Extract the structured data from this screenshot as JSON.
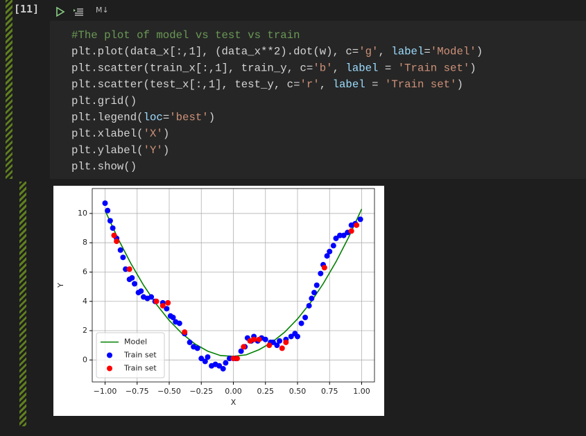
{
  "header": {
    "cell_label": "[11]",
    "cell_type": "M↓"
  },
  "code": {
    "lines": [
      [
        {
          "text": "#The plot of model vs test vs train",
          "color": "#6a9955"
        }
      ],
      [
        {
          "text": "plt.plot(data_x[:,1], (data_x**2).dot(w), c=",
          "color": "#d4d4d4"
        },
        {
          "text": "'g'",
          "color": "#ce9178"
        },
        {
          "text": ", ",
          "color": "#d4d4d4"
        },
        {
          "text": "label",
          "color": "#9cdcfe"
        },
        {
          "text": "=",
          "color": "#d4d4d4"
        },
        {
          "text": "'Model'",
          "color": "#ce9178"
        },
        {
          "text": ")",
          "color": "#d4d4d4"
        }
      ],
      [
        {
          "text": "plt.scatter(train_x[:,1], train_y, c=",
          "color": "#d4d4d4"
        },
        {
          "text": "'b'",
          "color": "#ce9178"
        },
        {
          "text": ", ",
          "color": "#d4d4d4"
        },
        {
          "text": "label",
          "color": "#9cdcfe"
        },
        {
          "text": " = ",
          "color": "#d4d4d4"
        },
        {
          "text": "'Train set'",
          "color": "#ce9178"
        },
        {
          "text": ")",
          "color": "#d4d4d4"
        }
      ],
      [
        {
          "text": "plt.scatter(test_x[:,1], test_y, c=",
          "color": "#d4d4d4"
        },
        {
          "text": "'r'",
          "color": "#ce9178"
        },
        {
          "text": ", ",
          "color": "#d4d4d4"
        },
        {
          "text": "label",
          "color": "#9cdcfe"
        },
        {
          "text": " = ",
          "color": "#d4d4d4"
        },
        {
          "text": "'Train set'",
          "color": "#ce9178"
        },
        {
          "text": ")",
          "color": "#d4d4d4"
        }
      ],
      [
        {
          "text": "plt.grid()",
          "color": "#d4d4d4"
        }
      ],
      [
        {
          "text": "plt.legend(",
          "color": "#d4d4d4"
        },
        {
          "text": "loc",
          "color": "#9cdcfe"
        },
        {
          "text": "=",
          "color": "#d4d4d4"
        },
        {
          "text": "'best'",
          "color": "#ce9178"
        },
        {
          "text": ")",
          "color": "#d4d4d4"
        }
      ],
      [
        {
          "text": "plt.xlabel(",
          "color": "#d4d4d4"
        },
        {
          "text": "'X'",
          "color": "#ce9178"
        },
        {
          "text": ")",
          "color": "#d4d4d4"
        }
      ],
      [
        {
          "text": "plt.ylabel(",
          "color": "#d4d4d4"
        },
        {
          "text": "'Y'",
          "color": "#ce9178"
        },
        {
          "text": ")",
          "color": "#d4d4d4"
        }
      ],
      [
        {
          "text": "plt.show()",
          "color": "#d4d4d4"
        }
      ]
    ]
  },
  "chart_data": {
    "type": "scatter",
    "xlabel": "X",
    "ylabel": "Y",
    "grid": true,
    "legend": "lower left",
    "xlim": [
      -1.1,
      1.1
    ],
    "ylim": [
      -1.5,
      11.7
    ],
    "xticks": [
      {
        "value": -1,
        "label": "−1.00"
      },
      {
        "value": -0.75,
        "label": "−0.75"
      },
      {
        "value": -0.5,
        "label": "−0.50"
      },
      {
        "value": -0.25,
        "label": "−0.25"
      },
      {
        "value": 0,
        "label": "0.00"
      },
      0.25,
      {
        "value": 0.5,
        "label": "0.50"
      },
      0.75,
      {
        "value": 1,
        "label": "1.00"
      }
    ],
    "yticks": [
      0,
      2,
      4,
      6,
      8,
      10
    ],
    "series": [
      {
        "name": "Model",
        "type": "line",
        "color": "#008000",
        "x": [
          -1,
          -0.9,
          -0.8,
          -0.7,
          -0.6,
          -0.5,
          -0.4,
          -0.3,
          -0.2,
          -0.1,
          0,
          0.1,
          0.2,
          0.3,
          0.4,
          0.5,
          0.6,
          0.7,
          0.8,
          0.9,
          1
        ],
        "values": [
          10.2,
          8.3,
          6.6,
          5.1,
          3.8,
          2.7,
          1.8,
          1.1,
          0.6,
          0.3,
          0.25,
          0.35,
          0.7,
          1.2,
          1.9,
          2.8,
          3.9,
          5.2,
          6.7,
          8.4,
          10.3
        ]
      },
      {
        "name": "Train set",
        "type": "scatter",
        "color": "#0000ff",
        "x": [
          -1.0,
          -0.98,
          -0.96,
          -0.94,
          -0.91,
          -0.88,
          -0.86,
          -0.84,
          -0.81,
          -0.79,
          -0.77,
          -0.74,
          -0.72,
          -0.7,
          -0.67,
          -0.64,
          -0.61,
          -0.55,
          -0.52,
          -0.49,
          -0.47,
          -0.45,
          -0.42,
          -0.38,
          -0.34,
          -0.31,
          -0.28,
          -0.25,
          -0.22,
          -0.2,
          -0.17,
          -0.14,
          -0.11,
          -0.08,
          -0.06,
          -0.03,
          0.02,
          0.06,
          0.09,
          0.11,
          0.14,
          0.16,
          0.19,
          0.22,
          0.25,
          0.29,
          0.31,
          0.34,
          0.36,
          0.41,
          0.45,
          0.48,
          0.5,
          0.53,
          0.56,
          0.59,
          0.61,
          0.63,
          0.65,
          0.68,
          0.7,
          0.73,
          0.75,
          0.78,
          0.8,
          0.83,
          0.86,
          0.89,
          0.92,
          0.95,
          0.99
        ],
        "values": [
          10.7,
          10.2,
          9.5,
          9.0,
          8.3,
          7.5,
          7.0,
          6.2,
          5.5,
          5.6,
          5.2,
          4.6,
          4.7,
          4.3,
          4.2,
          4.3,
          4.0,
          3.9,
          3.5,
          3.0,
          2.9,
          2.6,
          2.5,
          1.8,
          1.2,
          0.9,
          0.8,
          0.1,
          -0.1,
          0.2,
          -0.4,
          -0.3,
          -0.4,
          -0.6,
          -0.2,
          0.1,
          0.1,
          0.6,
          0.9,
          1.5,
          1.3,
          1.6,
          1.3,
          1.5,
          1.4,
          1.2,
          1.2,
          1.0,
          1.3,
          1.4,
          1.6,
          1.8,
          1.6,
          2.5,
          2.9,
          3.7,
          4.2,
          4.6,
          5.1,
          5.9,
          6.5,
          7.1,
          7.4,
          7.8,
          8.3,
          8.5,
          8.5,
          8.7,
          9.2,
          9.3,
          9.6
        ]
      },
      {
        "name": "Train set",
        "type": "scatter",
        "color": "#ff0000",
        "x": [
          -0.93,
          -0.91,
          -0.81,
          -0.6,
          -0.55,
          -0.51,
          -0.38,
          0.0,
          0.03,
          0.08,
          0.13,
          0.16,
          0.2,
          0.28,
          0.38,
          0.41,
          0.71,
          0.92,
          0.96
        ],
        "values": [
          8.5,
          8.1,
          6.2,
          4.0,
          3.7,
          3.9,
          1.9,
          0.1,
          0.1,
          0.9,
          1.3,
          1.4,
          1.4,
          1.0,
          0.8,
          1.2,
          6.3,
          8.8,
          9.2
        ]
      }
    ]
  }
}
